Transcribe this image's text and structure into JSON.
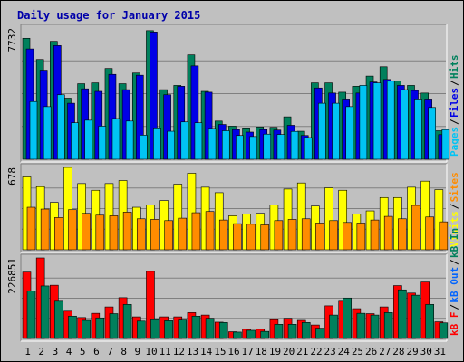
{
  "title": "Daily usage for January 2015",
  "colors": {
    "hits": "#00805c",
    "files": "#0000e6",
    "pages": "#00c4f4",
    "visits": "#ffff00",
    "sites": "#ff8c00",
    "kbin": "#00805c",
    "kbout": "#0064ff",
    "kbf": "#ff0000",
    "slash": "#000000"
  },
  "chart_data": [
    {
      "type": "bar",
      "panel": "top",
      "ymax_label": "7732",
      "ylim": [
        0,
        7732
      ],
      "categories": [
        "1",
        "2",
        "3",
        "4",
        "5",
        "6",
        "7",
        "8",
        "9",
        "10",
        "11",
        "12",
        "13",
        "14",
        "15",
        "16",
        "17",
        "18",
        "19",
        "20",
        "21",
        "22",
        "23",
        "24",
        "25",
        "26",
        "27",
        "28",
        "29",
        "30",
        "31"
      ],
      "weekend_days": [
        "3",
        "4",
        "10",
        "11",
        "17",
        "18",
        "24",
        "25",
        "31"
      ],
      "legend": [
        "Pages",
        "Files",
        "Hits"
      ],
      "series": [
        {
          "name": "Hits",
          "values": [
            7130,
            5880,
            6950,
            3600,
            4450,
            4500,
            5350,
            4450,
            5080,
            7580,
            4100,
            4350,
            6150,
            4000,
            2250,
            1950,
            1850,
            1900,
            1880,
            2500,
            1650,
            4500,
            4500,
            3950,
            4300,
            4900,
            5450,
            4600,
            4350,
            3900,
            1680
          ]
        },
        {
          "name": "Files",
          "values": [
            6500,
            5250,
            6700,
            3300,
            4150,
            4000,
            5000,
            4100,
            4950,
            7500,
            3800,
            4300,
            5500,
            3950,
            2050,
            1750,
            1600,
            1750,
            1720,
            2000,
            1400,
            4200,
            3900,
            3550,
            3900,
            4550,
            4700,
            4350,
            4050,
            3550,
            1450
          ]
        },
        {
          "name": "Pages",
          "values": [
            3400,
            3100,
            3800,
            2150,
            2300,
            1950,
            2400,
            2250,
            1420,
            1850,
            1650,
            2200,
            2150,
            1820,
            1680,
            1400,
            1340,
            1480,
            1460,
            1640,
            1280,
            3300,
            3300,
            3100,
            4350,
            4500,
            4600,
            4100,
            3550,
            3050,
            1750
          ]
        }
      ]
    },
    {
      "type": "bar",
      "panel": "middle",
      "ymax_label": "678",
      "ylim": [
        0,
        678
      ],
      "legend": [
        "Visits",
        "Sites"
      ],
      "series": [
        {
          "name": "Visits",
          "values": [
            600,
            520,
            390,
            678,
            545,
            490,
            545,
            570,
            350,
            370,
            405,
            540,
            630,
            515,
            470,
            280,
            295,
            300,
            370,
            500,
            550,
            360,
            510,
            490,
            295,
            320,
            430,
            430,
            515,
            565,
            495
          ]
        },
        {
          "name": "Sites",
          "values": [
            350,
            335,
            265,
            330,
            300,
            285,
            280,
            310,
            255,
            250,
            240,
            260,
            305,
            315,
            245,
            215,
            210,
            205,
            240,
            250,
            255,
            220,
            240,
            225,
            220,
            245,
            275,
            255,
            365,
            270,
            230
          ]
        }
      ]
    },
    {
      "type": "bar",
      "panel": "bottom",
      "ymax_label": "226851",
      "ylim": [
        0,
        226851
      ],
      "legend": [
        "kB F",
        "kB Out",
        "kB In"
      ],
      "series": [
        {
          "name": "kB F",
          "values": [
            187000,
            226851,
            150000,
            77000,
            59000,
            71000,
            89000,
            115000,
            61000,
            189000,
            61000,
            61000,
            73000,
            66000,
            46000,
            19000,
            26000,
            26000,
            53000,
            57000,
            51000,
            38000,
            92000,
            105000,
            84000,
            70000,
            89000,
            149000,
            128000,
            159000,
            47000
          ]
        },
        {
          "name": "kB In",
          "values": [
            134000,
            148000,
            105000,
            63000,
            51000,
            58000,
            70000,
            96000,
            49000,
            53000,
            50000,
            52000,
            63000,
            57000,
            45000,
            18000,
            23000,
            20000,
            40000,
            40000,
            45000,
            29000,
            66000,
            114000,
            71000,
            66000,
            73000,
            137000,
            122000,
            96000,
            44000
          ]
        }
      ]
    }
  ]
}
